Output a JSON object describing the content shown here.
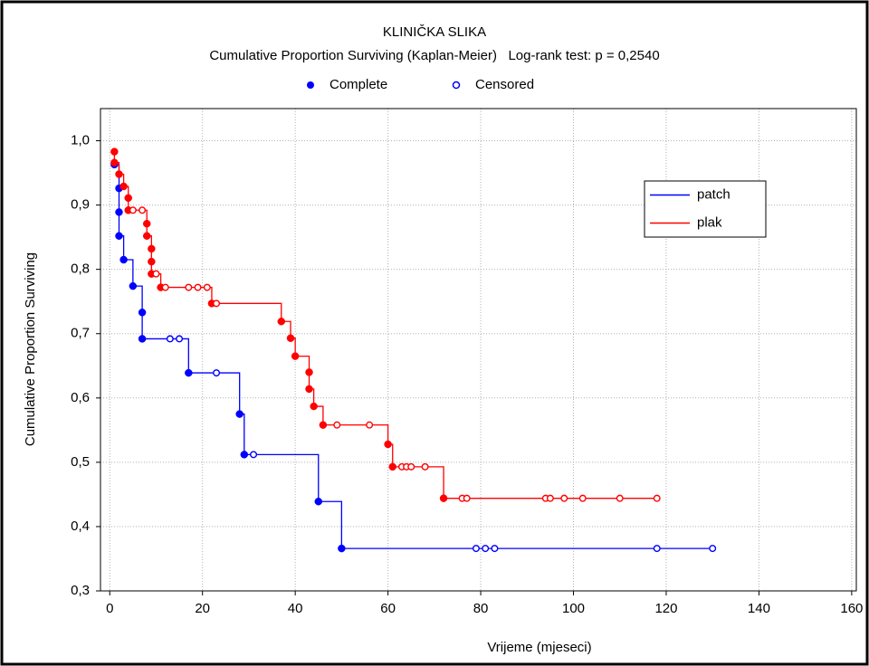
{
  "chart_data": {
    "type": "kaplan-meier",
    "title": "KLINIČKA SLIKA",
    "subtitle": "Cumulative Proportion Surviving (Kaplan-Meier)   Log-rank test: p = 0,2540",
    "marker_legend": [
      "Complete",
      "Censored"
    ],
    "xlabel": "Vrijeme (mjeseci)",
    "ylabel": "Cumulative Proportion Surviving",
    "xlim": [
      -2,
      161
    ],
    "ylim": [
      0.3,
      1.05
    ],
    "xticks": [
      0,
      20,
      40,
      60,
      80,
      100,
      120,
      140,
      160
    ],
    "yticks": [
      {
        "value": 0.3,
        "label": "0,3"
      },
      {
        "value": 0.4,
        "label": "0,4"
      },
      {
        "value": 0.5,
        "label": "0,5"
      },
      {
        "value": 0.6,
        "label": "0,6"
      },
      {
        "value": 0.7,
        "label": "0,7"
      },
      {
        "value": 0.8,
        "label": "0,8"
      },
      {
        "value": 0.9,
        "label": "0,9"
      },
      {
        "value": 1.0,
        "label": "1,0"
      }
    ],
    "grid": true,
    "legend": "upper right",
    "series": [
      {
        "name": "patch",
        "color": "#0000ff",
        "x": [
          1,
          2,
          2,
          2,
          3,
          5,
          7,
          7,
          13,
          15,
          17,
          23,
          28,
          29,
          31,
          45,
          50,
          79,
          81,
          83,
          118,
          130
        ],
        "values": [
          0.963,
          0.926,
          0.889,
          0.852,
          0.815,
          0.774,
          0.733,
          0.692,
          0.692,
          0.692,
          0.639,
          0.639,
          0.575,
          0.512,
          0.512,
          0.439,
          0.366,
          0.366,
          0.366,
          0.366,
          0.366,
          0.366
        ],
        "censored": [
          false,
          false,
          false,
          false,
          false,
          false,
          false,
          false,
          true,
          true,
          false,
          true,
          false,
          false,
          true,
          false,
          false,
          true,
          true,
          true,
          true,
          true
        ]
      },
      {
        "name": "plak",
        "color": "#ff0000",
        "x": [
          1,
          1,
          2,
          3,
          4,
          4,
          5,
          7,
          8,
          8,
          9,
          9,
          9,
          10,
          11,
          12,
          17,
          19,
          21,
          22,
          23,
          37,
          39,
          40,
          43,
          43,
          44,
          46,
          49,
          56,
          60,
          61,
          63,
          64,
          65,
          68,
          72,
          76,
          77,
          94,
          95,
          98,
          102,
          110,
          118
        ],
        "values": [
          0.983,
          0.966,
          0.948,
          0.929,
          0.911,
          0.892,
          0.892,
          0.892,
          0.871,
          0.852,
          0.832,
          0.812,
          0.793,
          0.793,
          0.772,
          0.772,
          0.772,
          0.772,
          0.772,
          0.747,
          0.747,
          0.719,
          0.693,
          0.665,
          0.64,
          0.614,
          0.587,
          0.558,
          0.558,
          0.558,
          0.528,
          0.493,
          0.493,
          0.493,
          0.493,
          0.493,
          0.444,
          0.444,
          0.444,
          0.444,
          0.444,
          0.444,
          0.444,
          0.444,
          0.444
        ],
        "censored": [
          false,
          false,
          false,
          false,
          false,
          false,
          true,
          true,
          false,
          false,
          false,
          false,
          false,
          true,
          false,
          true,
          true,
          true,
          true,
          false,
          true,
          false,
          false,
          false,
          false,
          false,
          false,
          false,
          true,
          true,
          false,
          false,
          true,
          true,
          true,
          true,
          false,
          true,
          true,
          true,
          true,
          true,
          true,
          true,
          true
        ]
      }
    ]
  }
}
